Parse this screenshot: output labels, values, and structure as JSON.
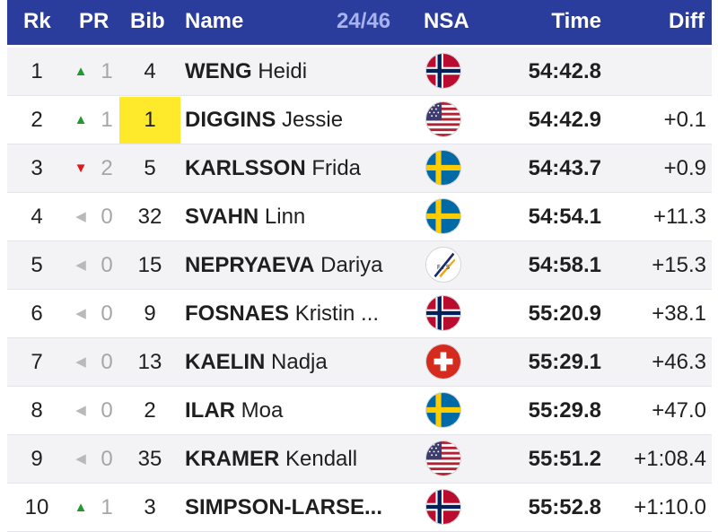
{
  "header": {
    "rk": "Rk",
    "pr": "PR",
    "bib": "Bib",
    "name": "Name",
    "count": "24/46",
    "nsa": "NSA",
    "time": "Time",
    "diff": "Diff"
  },
  "colors": {
    "header_bg": "#2b3d9c",
    "up": "#1f9a2e",
    "down": "#e01818",
    "bib_highlight": "#ffe92b"
  },
  "rows": [
    {
      "rank": "1",
      "pr_dir": "up",
      "pr": "1",
      "bib": "4",
      "bib_highlight": false,
      "last": "WENG",
      "first": "Heidi",
      "nsa": "NOR",
      "time": "54:42.8",
      "diff": ""
    },
    {
      "rank": "2",
      "pr_dir": "up",
      "pr": "1",
      "bib": "1",
      "bib_highlight": true,
      "last": "DIGGINS",
      "first": "Jessie",
      "nsa": "USA",
      "time": "54:42.9",
      "diff": "+0.1"
    },
    {
      "rank": "3",
      "pr_dir": "down",
      "pr": "2",
      "bib": "5",
      "bib_highlight": false,
      "last": "KARLSSON",
      "first": "Frida",
      "nsa": "SWE",
      "time": "54:43.7",
      "diff": "+0.9"
    },
    {
      "rank": "4",
      "pr_dir": "same",
      "pr": "0",
      "bib": "32",
      "bib_highlight": false,
      "last": "SVAHN",
      "first": "Linn",
      "nsa": "SWE",
      "time": "54:54.1",
      "diff": "+11.3"
    },
    {
      "rank": "5",
      "pr_dir": "same",
      "pr": "0",
      "bib": "15",
      "bib_highlight": false,
      "last": "NEPRYAEVA",
      "first": "Dariya",
      "nsa": "FIS",
      "time": "54:58.1",
      "diff": "+15.3"
    },
    {
      "rank": "6",
      "pr_dir": "same",
      "pr": "0",
      "bib": "9",
      "bib_highlight": false,
      "last": "FOSNAES",
      "first": "Kristin ...",
      "nsa": "NOR",
      "time": "55:20.9",
      "diff": "+38.1"
    },
    {
      "rank": "7",
      "pr_dir": "same",
      "pr": "0",
      "bib": "13",
      "bib_highlight": false,
      "last": "KAELIN",
      "first": "Nadja",
      "nsa": "SUI",
      "time": "55:29.1",
      "diff": "+46.3"
    },
    {
      "rank": "8",
      "pr_dir": "same",
      "pr": "0",
      "bib": "2",
      "bib_highlight": false,
      "last": "ILAR",
      "first": "Moa",
      "nsa": "SWE",
      "time": "55:29.8",
      "diff": "+47.0"
    },
    {
      "rank": "9",
      "pr_dir": "same",
      "pr": "0",
      "bib": "35",
      "bib_highlight": false,
      "last": "KRAMER",
      "first": "Kendall",
      "nsa": "USA",
      "time": "55:51.2",
      "diff": "+1:08.4"
    },
    {
      "rank": "10",
      "pr_dir": "up",
      "pr": "1",
      "bib": "3",
      "bib_highlight": false,
      "last": "SIMPSON-LARSE...",
      "first": "",
      "nsa": "NOR",
      "time": "55:52.8",
      "diff": "+1:10.0"
    }
  ]
}
